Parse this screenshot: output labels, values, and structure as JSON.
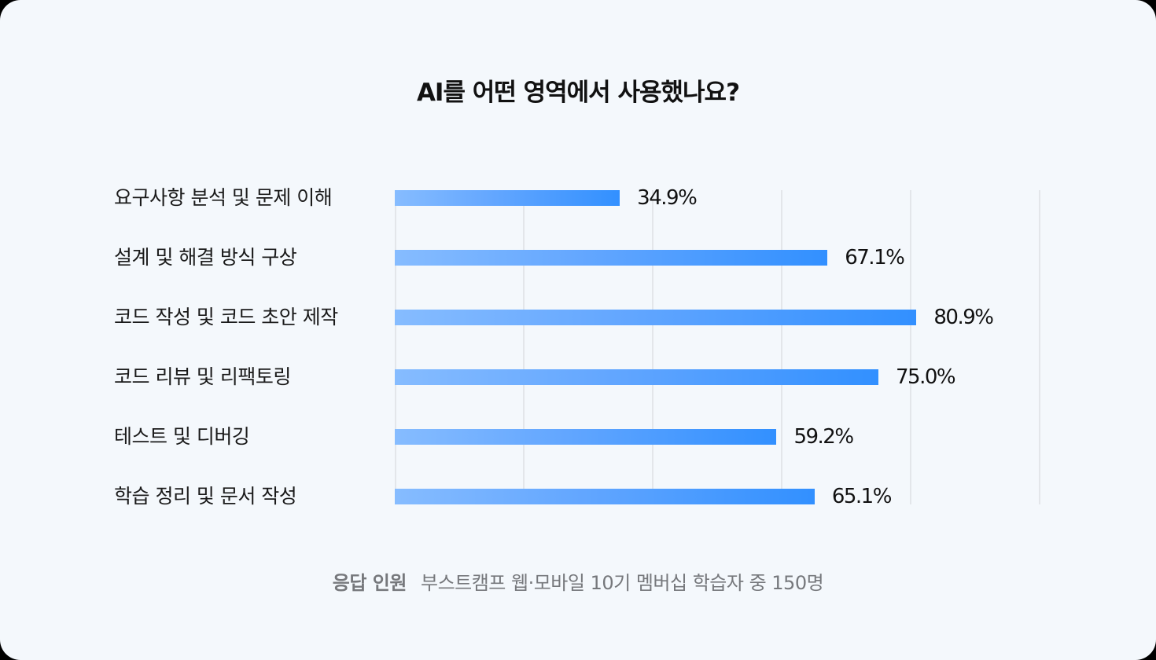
{
  "title": "AI를 어떤 영역에서 사용했나요?",
  "footer": {
    "label": "응답 인원",
    "text": "부스트캠프 웹·모바일 10기 멤버십 학습자 중 150명"
  },
  "colors": {
    "background": "#F4F8FC",
    "bar_start": "#86BCFF",
    "bar_end": "#3290FF",
    "gridline": "#E3E6EA",
    "footer_text": "#76787C"
  },
  "chart_data": {
    "type": "bar",
    "orientation": "horizontal",
    "title": "AI를 어떤 영역에서 사용했나요?",
    "categories": [
      "요구사항 분석 및 문제 이해",
      "설계 및 해결 방식 구상",
      "코드 작성 및 코드 초안 제작",
      "코드 리뷰 및 리팩토링",
      "테스트 및 디버깅",
      "학습 정리 및 문서 작성"
    ],
    "values": [
      34.9,
      67.1,
      80.9,
      75.0,
      59.2,
      65.1
    ],
    "value_labels": [
      "34.9%",
      "67.1%",
      "80.9%",
      "75.0%",
      "59.2%",
      "65.1%"
    ],
    "xlabel": "",
    "ylabel": "",
    "xlim": [
      0,
      100
    ],
    "gridlines_at": [
      0,
      20,
      40,
      60,
      80,
      100
    ],
    "grid": true,
    "legend": "none",
    "annotation": "응답 인원 부스트캠프 웹·모바일 10기 멤버십 학습자 중 150명"
  }
}
